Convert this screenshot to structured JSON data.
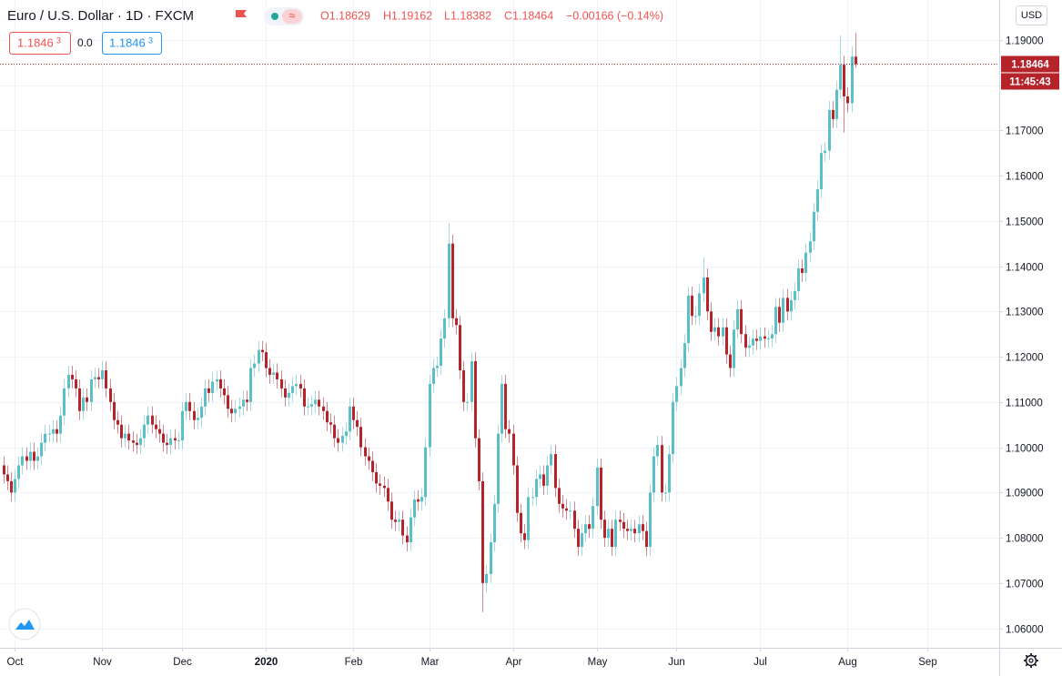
{
  "chart_data": {
    "type": "candlestick",
    "title": "Euro / U.S. Dollar · 1D · FXCM",
    "ohlc_legend": [
      "O1.18629",
      "H1.19162",
      "L1.18382",
      "C1.18464",
      "−0.00166 (−0.14%)"
    ],
    "sell_price": [
      "1.1846",
      "3"
    ],
    "spread": "0.0",
    "buy_price": [
      "1.1846",
      "3"
    ],
    "currency": "USD",
    "countdown": "11:45:43",
    "up_color": "#5bbfc7",
    "down_color": "#b5232b",
    "grid": true,
    "xlim": [
      -0.84,
      261.84
    ],
    "ylim": [
      1.0557,
      1.1988
    ],
    "yticks": [
      {
        "value": 1.06,
        "label": "1.06000"
      },
      {
        "value": 1.07,
        "label": "1.07000"
      },
      {
        "value": 1.08,
        "label": "1.08000"
      },
      {
        "value": 1.09,
        "label": "1.09000"
      },
      {
        "value": 1.1,
        "label": "1.10000"
      },
      {
        "value": 1.11,
        "label": "1.11000"
      },
      {
        "value": 1.12,
        "label": "1.12000"
      },
      {
        "value": 1.13,
        "label": "1.13000"
      },
      {
        "value": 1.14,
        "label": "1.14000"
      },
      {
        "value": 1.15,
        "label": "1.15000"
      },
      {
        "value": 1.16,
        "label": "1.16000"
      },
      {
        "value": 1.17,
        "label": "1.17000"
      },
      {
        "value": 1.18,
        "label": "1.18000"
      },
      {
        "value": 1.19,
        "label": "1.19000"
      }
    ],
    "xticks": [
      {
        "value": 3,
        "label": "Oct"
      },
      {
        "value": 26,
        "label": "Nov"
      },
      {
        "value": 47,
        "label": "Dec"
      },
      {
        "value": 69,
        "label": "2020"
      },
      {
        "value": 92,
        "label": "Feb"
      },
      {
        "value": 112,
        "label": "Mar"
      },
      {
        "value": 134,
        "label": "Apr"
      },
      {
        "value": 156,
        "label": "May"
      },
      {
        "value": 177,
        "label": "Jun"
      },
      {
        "value": 199,
        "label": "Jul"
      },
      {
        "value": 222,
        "label": "Aug"
      },
      {
        "value": 243,
        "label": "Sep"
      }
    ],
    "open": [
      1.096,
      1.094,
      1.0925,
      1.09,
      1.093,
      1.096,
      1.098,
      1.097,
      1.099,
      1.097,
      1.098,
      1.101,
      1.103,
      1.103,
      1.104,
      1.103,
      1.107,
      1.113,
      1.116,
      1.115,
      1.113,
      1.108,
      1.111,
      1.11,
      1.115,
      1.1155,
      1.115,
      1.117,
      1.113,
      1.11,
      1.106,
      1.105,
      1.102,
      1.103,
      1.1015,
      1.101,
      1.1005,
      1.102,
      1.105,
      1.107,
      1.105,
      1.104,
      1.103,
      1.101,
      1.1005,
      1.102,
      1.1015,
      1.1015,
      1.108,
      1.11,
      1.108,
      1.106,
      1.1065,
      1.109,
      1.113,
      1.112,
      1.1145,
      1.115,
      1.113,
      1.1115,
      1.1085,
      1.1075,
      1.1085,
      1.109,
      1.1105,
      1.11,
      1.1175,
      1.1185,
      1.1215,
      1.121,
      1.1175,
      1.116,
      1.1165,
      1.115,
      1.113,
      1.111,
      1.112,
      1.1135,
      1.114,
      1.113,
      1.109,
      1.109,
      1.1095,
      1.1105,
      1.109,
      1.108,
      1.1055,
      1.105,
      1.102,
      1.101,
      1.1025,
      1.1035,
      1.109,
      1.106,
      1.1045,
      1.1,
      1.098,
      1.097,
      1.0945,
      1.092,
      1.0915,
      1.091,
      1.088,
      1.084,
      1.0835,
      1.084,
      1.0805,
      1.079,
      1.0845,
      1.0885,
      1.088,
      1.089,
      1.1,
      1.114,
      1.1175,
      1.118,
      1.124,
      1.1285,
      1.145,
      1.1285,
      1.127,
      1.117,
      1.11,
      1.11,
      1.119,
      1.102,
      1.0925,
      1.07,
      1.072,
      1.079,
      1.0875,
      1.103,
      1.114,
      1.104,
      1.103,
      1.096,
      1.0855,
      1.081,
      1.0795,
      1.089,
      1.089,
      1.093,
      1.094,
      1.0915,
      1.096,
      1.0985,
      1.091,
      1.0875,
      1.0865,
      1.086,
      1.086,
      1.082,
      1.078,
      1.081,
      1.083,
      1.082,
      1.087,
      1.0955,
      1.084,
      1.08,
      1.082,
      1.078,
      1.084,
      1.0835,
      1.082,
      1.0815,
      1.082,
      1.081,
      1.083,
      1.0815,
      1.078,
      1.09,
      1.098,
      1.1005,
      1.09,
      1.09,
      1.0985,
      1.11,
      1.1135,
      1.1175,
      1.123,
      1.1335,
      1.129,
      1.129,
      1.134,
      1.1375,
      1.13,
      1.1255,
      1.1265,
      1.1245,
      1.1265,
      1.1205,
      1.1175,
      1.126,
      1.1305,
      1.125,
      1.122,
      1.1225,
      1.124,
      1.1235,
      1.1245,
      1.124,
      1.124,
      1.125,
      1.131,
      1.1275,
      1.133,
      1.13,
      1.1325,
      1.1345,
      1.1395,
      1.1385,
      1.143,
      1.1455,
      1.152,
      1.157,
      1.165,
      1.1655,
      1.1745,
      1.1725,
      1.179,
      1.1845,
      1.1775,
      1.176,
      1.18629
    ],
    "high": [
      1.098,
      1.096,
      1.0945,
      1.095,
      1.098,
      1.1,
      1.1,
      1.101,
      1.101,
      1.1,
      1.103,
      1.105,
      1.105,
      1.106,
      1.106,
      1.109,
      1.115,
      1.118,
      1.118,
      1.117,
      1.115,
      1.113,
      1.113,
      1.117,
      1.1175,
      1.1175,
      1.119,
      1.119,
      1.115,
      1.112,
      1.108,
      1.107,
      1.105,
      1.105,
      1.1035,
      1.103,
      1.104,
      1.107,
      1.109,
      1.109,
      1.107,
      1.106,
      1.105,
      1.103,
      1.104,
      1.104,
      1.1035,
      1.11,
      1.112,
      1.112,
      1.11,
      1.1085,
      1.111,
      1.115,
      1.115,
      1.1165,
      1.117,
      1.117,
      1.115,
      1.1135,
      1.1105,
      1.1105,
      1.111,
      1.1125,
      1.1125,
      1.1195,
      1.1205,
      1.1235,
      1.1235,
      1.123,
      1.1195,
      1.1185,
      1.1185,
      1.117,
      1.115,
      1.114,
      1.1155,
      1.116,
      1.116,
      1.115,
      1.111,
      1.1115,
      1.1125,
      1.1125,
      1.111,
      1.11,
      1.1075,
      1.107,
      1.104,
      1.1045,
      1.1055,
      1.111,
      1.111,
      1.108,
      1.1065,
      1.102,
      1.1,
      1.099,
      1.0965,
      1.094,
      1.0935,
      1.093,
      1.09,
      1.086,
      1.086,
      1.086,
      1.0825,
      1.0865,
      1.0905,
      1.0905,
      1.091,
      1.102,
      1.116,
      1.1195,
      1.12,
      1.126,
      1.1305,
      1.1495,
      1.147,
      1.1305,
      1.129,
      1.119,
      1.112,
      1.121,
      1.121,
      1.104,
      1.0945,
      1.074,
      1.081,
      1.0895,
      1.105,
      1.116,
      1.116,
      1.106,
      1.105,
      1.098,
      1.0875,
      1.083,
      1.091,
      1.091,
      1.095,
      1.096,
      1.096,
      1.098,
      1.1005,
      1.1005,
      1.093,
      1.0895,
      1.0885,
      1.088,
      1.088,
      1.084,
      1.083,
      1.085,
      1.085,
      1.089,
      1.0975,
      1.0975,
      1.086,
      1.084,
      1.084,
      1.086,
      1.086,
      1.0855,
      1.084,
      1.084,
      1.084,
      1.085,
      1.085,
      1.0835,
      1.092,
      1.1,
      1.1025,
      1.1025,
      1.092,
      1.1005,
      1.112,
      1.1155,
      1.1195,
      1.125,
      1.1355,
      1.1355,
      1.131,
      1.136,
      1.142,
      1.1395,
      1.132,
      1.1285,
      1.1285,
      1.1285,
      1.1285,
      1.1225,
      1.128,
      1.1325,
      1.1325,
      1.127,
      1.1245,
      1.126,
      1.126,
      1.1265,
      1.1265,
      1.126,
      1.127,
      1.133,
      1.133,
      1.135,
      1.135,
      1.1345,
      1.1365,
      1.1415,
      1.1415,
      1.145,
      1.1475,
      1.154,
      1.159,
      1.167,
      1.1675,
      1.1765,
      1.1765,
      1.181,
      1.191,
      1.1865,
      1.1795,
      1.1885,
      1.19162
    ],
    "low": [
      1.092,
      1.0905,
      1.088,
      1.088,
      1.091,
      1.094,
      1.095,
      1.095,
      1.095,
      1.095,
      1.096,
      1.099,
      1.101,
      1.101,
      1.101,
      1.101,
      1.105,
      1.111,
      1.113,
      1.111,
      1.106,
      1.106,
      1.108,
      1.108,
      1.113,
      1.113,
      1.113,
      1.111,
      1.108,
      1.104,
      1.103,
      1.1,
      1.1,
      1.0995,
      1.099,
      1.0985,
      1.0985,
      1.1,
      1.103,
      1.103,
      1.102,
      1.101,
      1.099,
      1.0985,
      1.0985,
      1.0995,
      1.0995,
      1.0995,
      1.106,
      1.106,
      1.104,
      1.104,
      1.1045,
      1.107,
      1.11,
      1.11,
      1.1125,
      1.111,
      1.1095,
      1.1065,
      1.1055,
      1.1055,
      1.1065,
      1.107,
      1.108,
      1.108,
      1.1155,
      1.1165,
      1.119,
      1.1155,
      1.114,
      1.114,
      1.113,
      1.111,
      1.109,
      1.109,
      1.11,
      1.1115,
      1.111,
      1.107,
      1.107,
      1.107,
      1.1075,
      1.107,
      1.106,
      1.1035,
      1.103,
      1.1,
      1.099,
      1.099,
      1.1005,
      1.1015,
      1.104,
      1.1025,
      1.098,
      1.096,
      1.095,
      1.0925,
      1.09,
      1.0895,
      1.089,
      1.086,
      1.082,
      1.0815,
      1.0815,
      1.0785,
      1.077,
      1.077,
      1.0825,
      1.086,
      1.086,
      1.087,
      1.098,
      1.112,
      1.1155,
      1.116,
      1.122,
      1.1265,
      1.1265,
      1.125,
      1.115,
      1.108,
      1.108,
      1.108,
      1.1,
      1.0905,
      1.0636,
      1.068,
      1.07,
      1.077,
      1.0855,
      1.101,
      1.102,
      1.101,
      1.094,
      1.0835,
      1.079,
      1.0775,
      1.0775,
      1.087,
      1.087,
      1.091,
      1.0895,
      1.0895,
      1.094,
      1.089,
      1.0855,
      1.0845,
      1.084,
      1.084,
      1.08,
      1.076,
      1.076,
      1.079,
      1.08,
      1.08,
      1.085,
      1.082,
      1.078,
      1.078,
      1.076,
      1.076,
      1.0815,
      1.08,
      1.0795,
      1.0795,
      1.079,
      1.079,
      1.0795,
      1.076,
      1.076,
      1.088,
      1.096,
      1.088,
      1.088,
      1.088,
      1.0965,
      1.108,
      1.1115,
      1.1155,
      1.121,
      1.127,
      1.127,
      1.127,
      1.132,
      1.128,
      1.1235,
      1.1235,
      1.1225,
      1.1225,
      1.1185,
      1.1155,
      1.1155,
      1.124,
      1.123,
      1.12,
      1.12,
      1.1205,
      1.1215,
      1.1215,
      1.122,
      1.122,
      1.122,
      1.123,
      1.1255,
      1.1255,
      1.128,
      1.128,
      1.1305,
      1.1325,
      1.1365,
      1.1365,
      1.141,
      1.1435,
      1.15,
      1.155,
      1.163,
      1.1635,
      1.1705,
      1.1705,
      1.177,
      1.1695,
      1.174,
      1.174,
      1.18382
    ],
    "close": [
      1.094,
      1.0925,
      1.09,
      1.093,
      1.096,
      1.098,
      1.097,
      1.099,
      1.097,
      1.098,
      1.101,
      1.103,
      1.103,
      1.104,
      1.103,
      1.107,
      1.113,
      1.116,
      1.115,
      1.113,
      1.108,
      1.111,
      1.11,
      1.115,
      1.1155,
      1.115,
      1.117,
      1.113,
      1.11,
      1.106,
      1.105,
      1.102,
      1.103,
      1.1015,
      1.101,
      1.1005,
      1.102,
      1.105,
      1.107,
      1.105,
      1.104,
      1.103,
      1.101,
      1.1005,
      1.102,
      1.1015,
      1.1015,
      1.108,
      1.11,
      1.108,
      1.106,
      1.1065,
      1.109,
      1.113,
      1.112,
      1.1145,
      1.115,
      1.113,
      1.1115,
      1.1085,
      1.1075,
      1.1085,
      1.109,
      1.1105,
      1.11,
      1.1175,
      1.1185,
      1.1215,
      1.121,
      1.1175,
      1.116,
      1.1165,
      1.115,
      1.113,
      1.111,
      1.112,
      1.1135,
      1.114,
      1.113,
      1.109,
      1.109,
      1.1095,
      1.1105,
      1.109,
      1.108,
      1.1055,
      1.105,
      1.102,
      1.101,
      1.1025,
      1.1035,
      1.109,
      1.106,
      1.1045,
      1.1,
      1.098,
      1.097,
      1.0945,
      1.092,
      1.0915,
      1.091,
      1.088,
      1.084,
      1.0835,
      1.084,
      1.0805,
      1.079,
      1.0845,
      1.0885,
      1.088,
      1.089,
      1.1,
      1.114,
      1.1175,
      1.118,
      1.124,
      1.1285,
      1.145,
      1.1285,
      1.127,
      1.117,
      1.11,
      1.11,
      1.119,
      1.102,
      1.0925,
      1.07,
      1.072,
      1.079,
      1.0875,
      1.103,
      1.114,
      1.104,
      1.103,
      1.096,
      1.0855,
      1.081,
      1.0795,
      1.089,
      1.089,
      1.093,
      1.094,
      1.0915,
      1.096,
      1.0985,
      1.091,
      1.0875,
      1.0865,
      1.086,
      1.086,
      1.082,
      1.078,
      1.081,
      1.083,
      1.082,
      1.087,
      1.0955,
      1.084,
      1.08,
      1.082,
      1.078,
      1.084,
      1.0835,
      1.082,
      1.0815,
      1.082,
      1.081,
      1.083,
      1.0815,
      1.078,
      1.09,
      1.098,
      1.1005,
      1.09,
      1.09,
      1.0985,
      1.11,
      1.1135,
      1.1175,
      1.123,
      1.1335,
      1.129,
      1.129,
      1.134,
      1.1375,
      1.13,
      1.1255,
      1.1265,
      1.1245,
      1.1265,
      1.1205,
      1.1175,
      1.126,
      1.1305,
      1.125,
      1.122,
      1.1225,
      1.124,
      1.1235,
      1.1245,
      1.124,
      1.124,
      1.125,
      1.131,
      1.1275,
      1.133,
      1.13,
      1.1325,
      1.1345,
      1.1395,
      1.1385,
      1.143,
      1.1455,
      1.152,
      1.157,
      1.165,
      1.1655,
      1.1745,
      1.1725,
      1.179,
      1.1845,
      1.1775,
      1.176,
      1.18629,
      1.18464
    ]
  }
}
